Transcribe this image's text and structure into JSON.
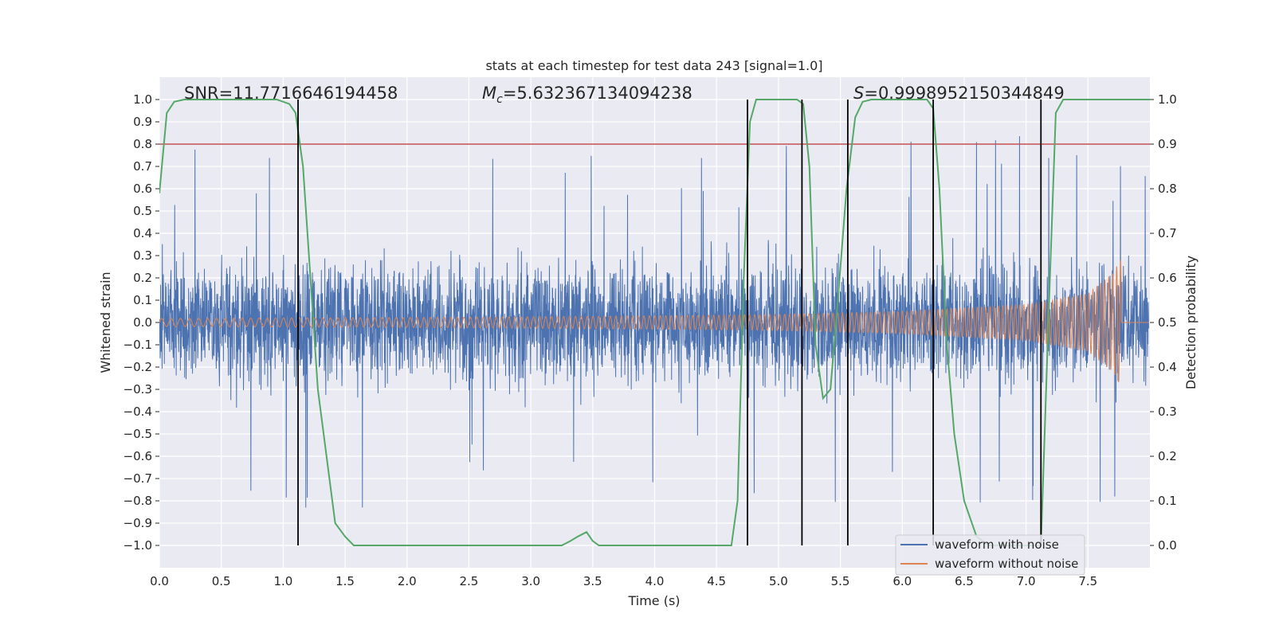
{
  "chart_data": {
    "type": "line",
    "title": "stats at each timestep for test data 243 [signal=1.0]",
    "xlabel": "Time (s)",
    "ylabel": "Whitened strain",
    "y2label": "Detection probability",
    "xlim": [
      0.0,
      8.0
    ],
    "ylim": [
      -1.1,
      1.1
    ],
    "y2lim": [
      -0.05,
      1.05
    ],
    "xticks": [
      "0.0",
      "0.5",
      "1.0",
      "1.5",
      "2.0",
      "2.5",
      "3.0",
      "3.5",
      "4.0",
      "4.5",
      "5.0",
      "5.5",
      "6.0",
      "6.5",
      "7.0",
      "7.5"
    ],
    "yticks": [
      "1.0",
      "0.9",
      "0.8",
      "0.7",
      "0.6",
      "0.5",
      "0.4",
      "0.3",
      "0.2",
      "0.1",
      "0.0",
      "−0.1",
      "−0.2",
      "−0.3",
      "−0.4",
      "−0.5",
      "−0.6",
      "−0.7",
      "−0.8",
      "−0.9",
      "−1.0"
    ],
    "y2ticks": [
      "1.0",
      "0.9",
      "0.8",
      "0.7",
      "0.6",
      "0.5",
      "0.4",
      "0.3",
      "0.2",
      "0.1",
      "0.0"
    ],
    "grid": true,
    "legend_position": "lower-right",
    "annotations": {
      "snr": "SNR=11.7716646194458",
      "mc": "=5.632367134094238",
      "s": "=0.9998952150344849"
    },
    "series": [
      {
        "name": "waveform with noise",
        "color": "#4c72b0",
        "axis": "left",
        "description_free": true
      },
      {
        "name": "waveform without noise",
        "color": "#dd8452",
        "axis": "left",
        "amplitude_envelope": [
          [
            0.0,
            0.018
          ],
          [
            2.0,
            0.022
          ],
          [
            4.0,
            0.03
          ],
          [
            5.0,
            0.036
          ],
          [
            6.0,
            0.05
          ],
          [
            7.0,
            0.08
          ],
          [
            7.5,
            0.13
          ],
          [
            7.7,
            0.22
          ],
          [
            7.76,
            0.28
          ]
        ],
        "end_time": 7.77
      },
      {
        "name": "",
        "color": "#55a868",
        "axis": "right",
        "x": [
          0.0,
          0.06,
          0.12,
          0.2,
          0.4,
          0.6,
          0.8,
          0.95,
          1.05,
          1.1,
          1.16,
          1.22,
          1.28,
          1.35,
          1.42,
          1.5,
          1.57,
          1.65,
          2.0,
          2.5,
          3.0,
          3.25,
          3.32,
          3.38,
          3.45,
          3.5,
          3.55,
          4.0,
          4.5,
          4.62,
          4.67,
          4.72,
          4.77,
          4.82,
          4.87,
          5.0,
          5.15,
          5.2,
          5.25,
          5.3,
          5.36,
          5.42,
          5.48,
          5.55,
          5.62,
          5.68,
          5.75,
          6.0,
          6.2,
          6.25,
          6.3,
          6.36,
          6.42,
          6.5,
          6.6,
          6.7,
          6.9,
          7.05,
          7.12,
          7.18,
          7.24,
          7.3,
          7.5,
          8.0
        ],
        "y": [
          0.79,
          0.97,
          0.995,
          1.0,
          1.0,
          1.0,
          1.0,
          1.0,
          0.99,
          0.97,
          0.85,
          0.6,
          0.35,
          0.2,
          0.05,
          0.02,
          0.0,
          0.0,
          0.0,
          0.0,
          0.0,
          0.0,
          0.01,
          0.02,
          0.03,
          0.01,
          0.0,
          0.0,
          0.0,
          0.0,
          0.1,
          0.6,
          0.95,
          1.0,
          1.0,
          1.0,
          1.0,
          0.99,
          0.85,
          0.45,
          0.33,
          0.35,
          0.55,
          0.8,
          0.96,
          0.995,
          1.0,
          1.0,
          1.0,
          0.98,
          0.8,
          0.45,
          0.25,
          0.1,
          0.02,
          0.0,
          0.0,
          0.0,
          0.0,
          0.5,
          0.97,
          1.0,
          1.0,
          1.0
        ]
      }
    ],
    "threshold_line": {
      "y2": 0.9,
      "color": "#c44e52"
    },
    "vertical_lines": {
      "x": [
        1.12,
        4.75,
        5.19,
        5.56,
        6.25,
        7.12
      ],
      "color": "#000000"
    }
  }
}
